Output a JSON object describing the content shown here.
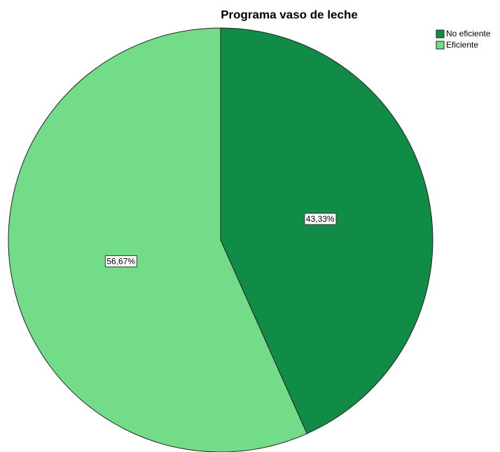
{
  "chart_data": {
    "type": "pie",
    "title": "Programa vaso de leche",
    "categories": [
      "No eficiente",
      "Eficiente"
    ],
    "values": [
      43.33,
      56.67
    ],
    "value_labels": [
      "43,33%",
      "56,67%"
    ],
    "colors": [
      "#118c47",
      "#72dc88"
    ],
    "legend": "top-right"
  }
}
